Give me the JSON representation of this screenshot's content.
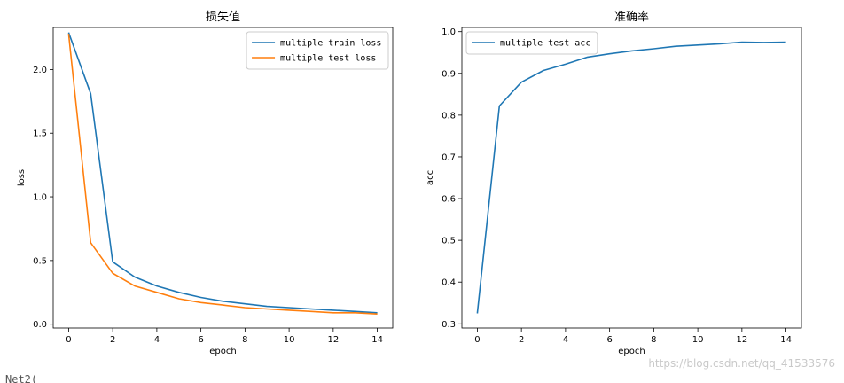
{
  "chart_data": [
    {
      "type": "line",
      "title": "损失值",
      "xlabel": "epoch",
      "ylabel": "loss",
      "xlim": [
        -0.7,
        14.7
      ],
      "ylim": [
        -0.03,
        2.33
      ],
      "xticks": [
        0,
        2,
        4,
        6,
        8,
        10,
        12,
        14
      ],
      "yticks": [
        0.0,
        0.5,
        1.0,
        1.5,
        2.0
      ],
      "ytick_labels": [
        "0.0",
        "0.5",
        "1.0",
        "1.5",
        "2.0"
      ],
      "legend_position": "top-right",
      "grid": false,
      "x": [
        0,
        1,
        2,
        3,
        4,
        5,
        6,
        7,
        8,
        9,
        10,
        11,
        12,
        13,
        14
      ],
      "series": [
        {
          "name": "multiple train loss",
          "color": "#1f77b4",
          "values": [
            2.29,
            1.81,
            0.49,
            0.37,
            0.3,
            0.25,
            0.21,
            0.18,
            0.16,
            0.14,
            0.13,
            0.12,
            0.11,
            0.1,
            0.09
          ]
        },
        {
          "name": "multiple test loss",
          "color": "#ff7f0e",
          "values": [
            2.28,
            0.64,
            0.4,
            0.3,
            0.25,
            0.2,
            0.17,
            0.15,
            0.13,
            0.12,
            0.11,
            0.1,
            0.09,
            0.09,
            0.08
          ]
        }
      ]
    },
    {
      "type": "line",
      "title": "准确率",
      "xlabel": "epoch",
      "ylabel": "acc",
      "xlim": [
        -0.7,
        14.7
      ],
      "ylim": [
        0.29,
        1.01
      ],
      "xticks": [
        0,
        2,
        4,
        6,
        8,
        10,
        12,
        14
      ],
      "yticks": [
        0.3,
        0.4,
        0.5,
        0.6,
        0.7,
        0.8,
        0.9,
        1.0
      ],
      "ytick_labels": [
        "0.3",
        "0.4",
        "0.5",
        "0.6",
        "0.7",
        "0.8",
        "0.9",
        "1.0"
      ],
      "legend_position": "top-left",
      "grid": false,
      "x": [
        0,
        1,
        2,
        3,
        4,
        5,
        6,
        7,
        8,
        9,
        10,
        11,
        12,
        13,
        14
      ],
      "series": [
        {
          "name": "multiple test acc",
          "color": "#1f77b4",
          "values": [
            0.325,
            0.822,
            0.879,
            0.907,
            0.922,
            0.939,
            0.947,
            0.954,
            0.959,
            0.965,
            0.968,
            0.971,
            0.975,
            0.974,
            0.975
          ]
        }
      ]
    }
  ],
  "watermark": "https://blog.csdn.net/qq_41533576",
  "bottom_fragment": "Net2("
}
